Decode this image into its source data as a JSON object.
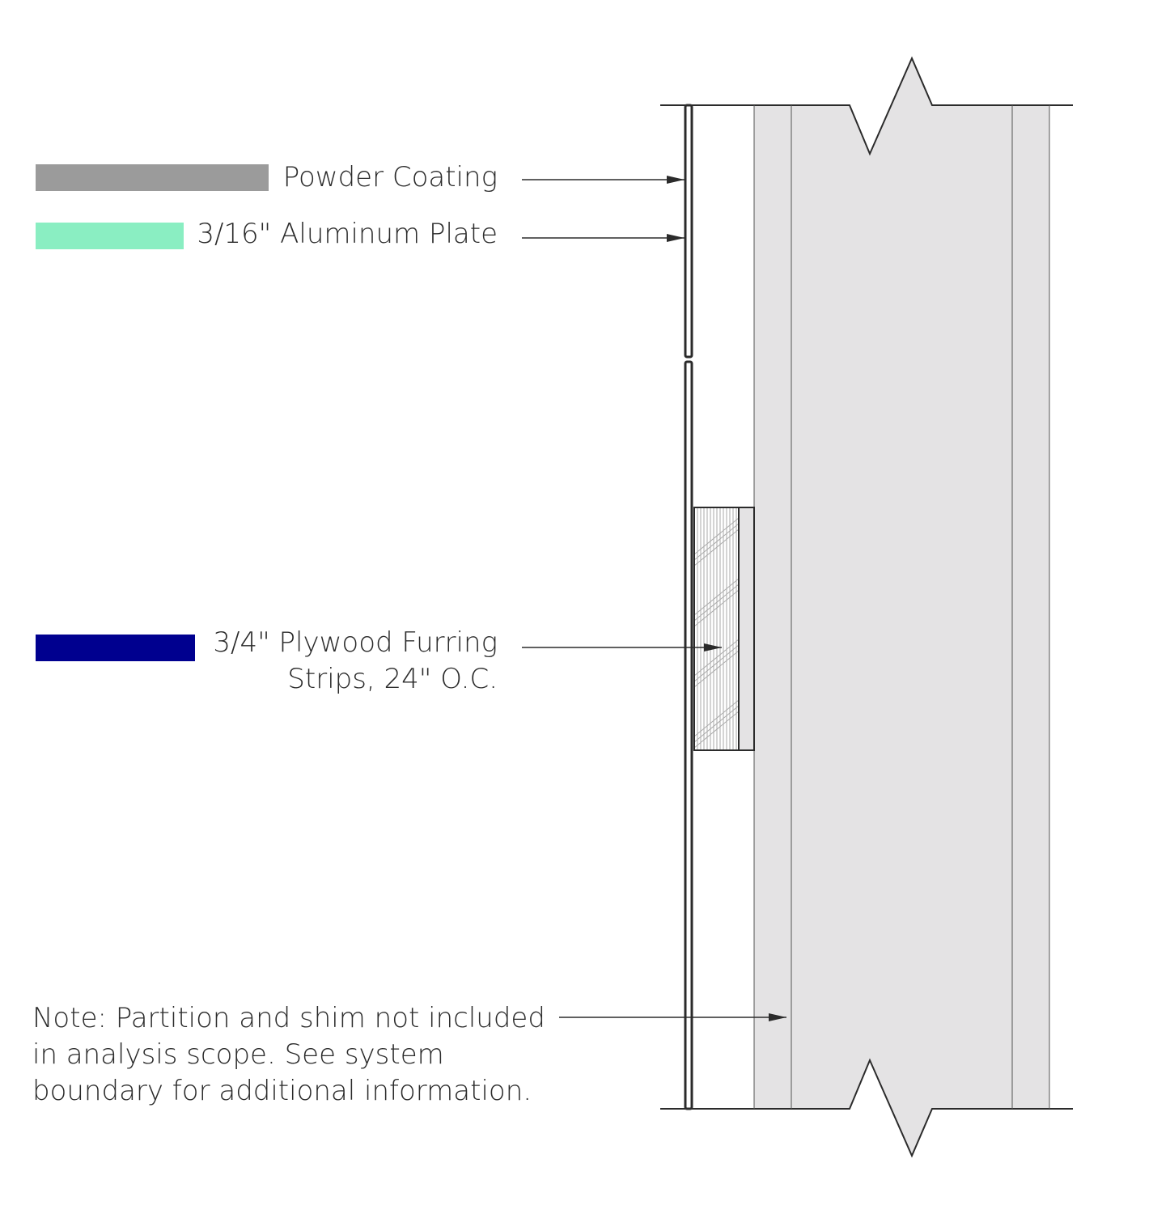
{
  "legend": {
    "items": [
      {
        "label": "Powder Coating",
        "color": "#9b9b9b"
      },
      {
        "label": "3/16\" Aluminum Plate",
        "color": "#8aeec2"
      },
      {
        "label_line1": "3/4\" Plywood Furring",
        "label_line2": "Strips, 24\" O.C.",
        "color": "#00008f"
      }
    ]
  },
  "note": {
    "line1": "Note: Partition and shim not included",
    "line2": "in analysis scope. See system",
    "line3": "boundary for additional information."
  },
  "colors": {
    "partition_fill": "#e4e3e4",
    "line": "#2b2b2b"
  }
}
